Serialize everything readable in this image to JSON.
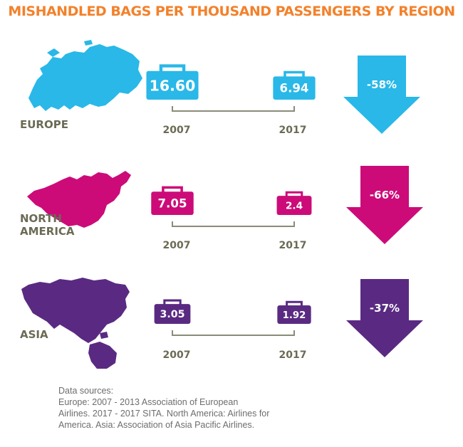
{
  "colors": {
    "title": "#f3812b",
    "region_label": "#6b6b55",
    "axis": "#8b8b78",
    "europe": "#29b8e8",
    "north_america": "#cc0b79",
    "asia": "#5a2a82"
  },
  "title": "MISHANDLED BAGS PER THOUSAND PASSENGERS BY REGION",
  "sources": {
    "heading": "Data sources:",
    "lines": [
      "Europe: 2007 - 2013 Association of European",
      "Airlines. 2017 - 2017 SITA. North America: Airlines for",
      "America. Asia: Association of Asia Pacific Airlines."
    ]
  },
  "chart_data": {
    "type": "bar",
    "title": "MISHANDLED BAGS PER THOUSAND PASSENGERS BY REGION",
    "categories": [
      "2007",
      "2017"
    ],
    "series": [
      {
        "name": "EUROPE",
        "label_lines": [
          "EUROPE"
        ],
        "values": [
          16.6,
          6.94
        ],
        "value_labels": [
          "16.60",
          "6.94"
        ],
        "change_label": "-58%",
        "color": "#29b8e8",
        "map_icon": "europe-map-icon"
      },
      {
        "name": "NORTH AMERICA",
        "label_lines": [
          "NORTH",
          "AMERICA"
        ],
        "values": [
          7.05,
          2.4
        ],
        "value_labels": [
          "7.05",
          "2.4"
        ],
        "change_label": "-66%",
        "color": "#cc0b79",
        "map_icon": "north-america-map-icon"
      },
      {
        "name": "ASIA",
        "label_lines": [
          "ASIA"
        ],
        "values": [
          3.05,
          1.92
        ],
        "value_labels": [
          "3.05",
          "1.92"
        ],
        "change_label": "-37%",
        "color": "#5a2a82",
        "map_icon": "asia-map-icon"
      }
    ]
  }
}
